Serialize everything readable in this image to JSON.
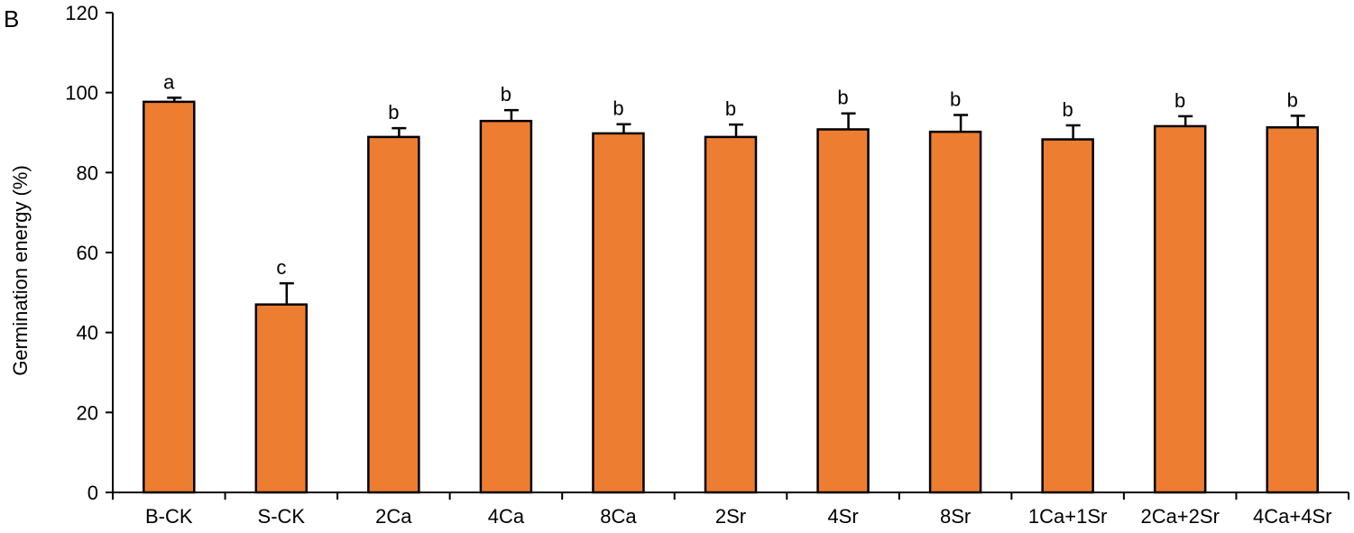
{
  "panel_label": "B",
  "chart_data": {
    "type": "bar",
    "title": "",
    "xlabel": "",
    "ylabel": "Germination energy (%)",
    "ylim": [
      0,
      120
    ],
    "yticks": [
      0,
      20,
      40,
      60,
      80,
      100,
      120
    ],
    "grid": false,
    "bar_color": "#ED7D31",
    "categories": [
      "B-CK",
      "S-CK",
      "2Ca",
      "4Ca",
      "8Ca",
      "2Sr",
      "4Sr",
      "8Sr",
      "1Ca+1Sr",
      "2Ca+2Sr",
      "4Ca+4Sr"
    ],
    "values": [
      97.7,
      47.0,
      88.9,
      92.9,
      89.8,
      88.9,
      90.8,
      90.2,
      88.3,
      91.6,
      91.3
    ],
    "errors": [
      1.0,
      5.3,
      2.2,
      2.7,
      2.3,
      3.1,
      4.0,
      4.2,
      3.5,
      2.5,
      2.9
    ],
    "significance_letters": [
      "a",
      "c",
      "b",
      "b",
      "b",
      "b",
      "b",
      "b",
      "b",
      "b",
      "b"
    ]
  }
}
